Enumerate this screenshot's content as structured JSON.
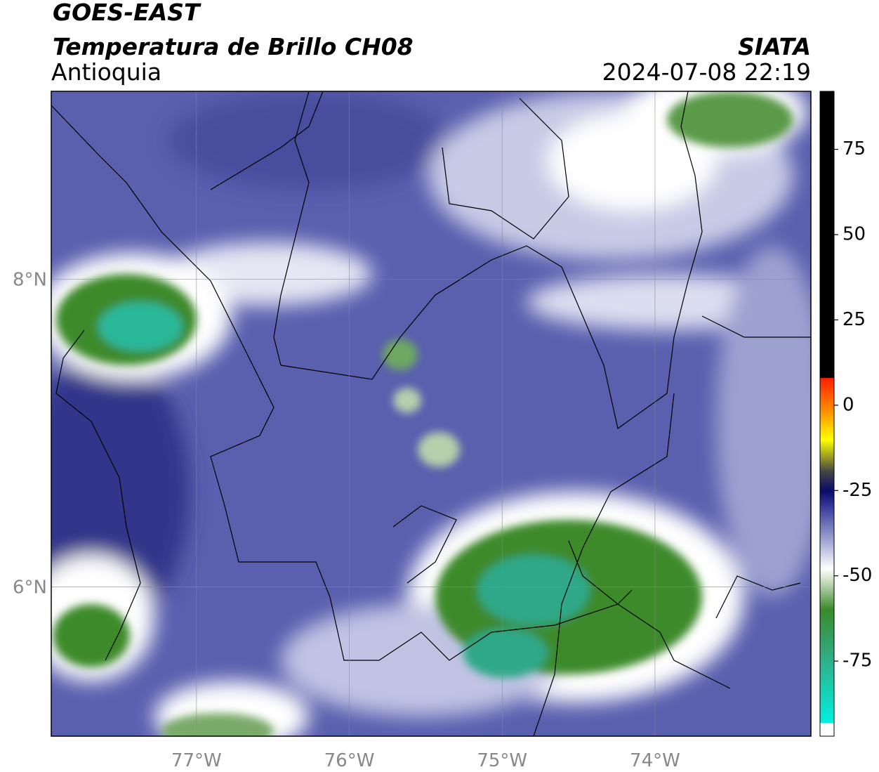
{
  "header": {
    "title": "GOES-EAST",
    "subtitle": "Temperatura de Brillo CH08",
    "region": "Antioquia",
    "source": "SIATA",
    "datetime": "2024-07-08 22:19"
  },
  "map": {
    "lonlim": [
      -77.95,
      -72.98
    ],
    "latlim": [
      5.03,
      9.22
    ],
    "lon_ticks": [
      {
        "value": -77,
        "label": "77°W"
      },
      {
        "value": -76,
        "label": "76°W"
      },
      {
        "value": -75,
        "label": "75°W"
      },
      {
        "value": -74,
        "label": "74°W"
      }
    ],
    "lat_ticks": [
      {
        "value": 8,
        "label": "8°N"
      },
      {
        "value": 6,
        "label": "6°N"
      }
    ],
    "grid": true
  },
  "colorbar": {
    "lim": [
      -97,
      92
    ],
    "ticks": [
      75,
      50,
      25,
      0,
      -25,
      -50,
      -75
    ]
  }
}
